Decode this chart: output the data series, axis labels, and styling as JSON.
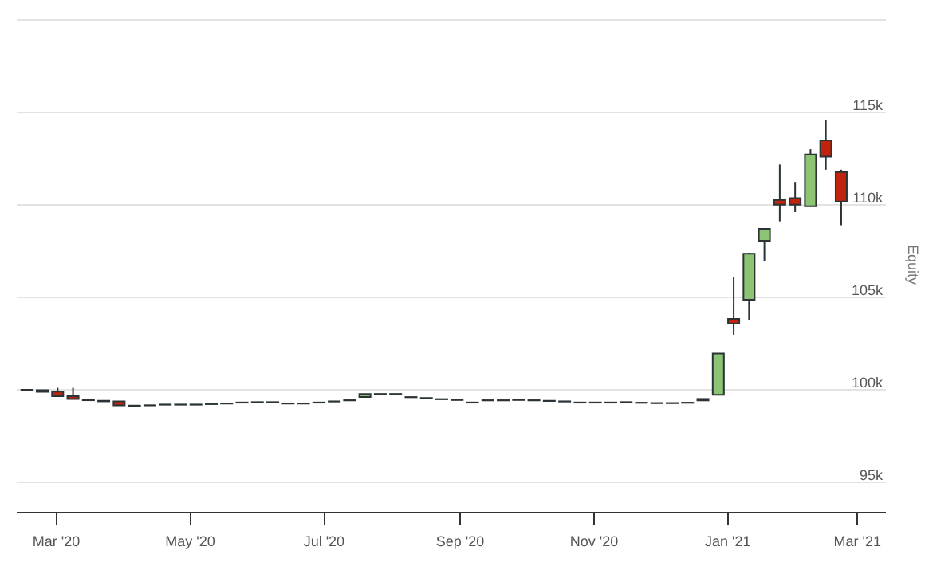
{
  "chart_data": {
    "type": "candlestick",
    "ylabel": "Equity",
    "grid": "y",
    "ylim": [
      93400,
      120200
    ],
    "yticks": [
      {
        "value": 95000,
        "label": "95k"
      },
      {
        "value": 100000,
        "label": "100k"
      },
      {
        "value": 105000,
        "label": "105k"
      },
      {
        "value": 110000,
        "label": "110k"
      },
      {
        "value": 115000,
        "label": "115k"
      },
      {
        "value": 120000,
        "label": null
      }
    ],
    "xlim": [
      "2020-02-12",
      "2021-03-14"
    ],
    "xticks": [
      {
        "value": "2020-03-01",
        "label": "Mar '20"
      },
      {
        "value": "2020-05-01",
        "label": "May '20"
      },
      {
        "value": "2020-07-01",
        "label": "Jul '20"
      },
      {
        "value": "2020-09-01",
        "label": "Sep '20"
      },
      {
        "value": "2020-11-01",
        "label": "Nov '20"
      },
      {
        "value": "2021-01-01",
        "label": "Jan '21"
      },
      {
        "value": "2021-03-01",
        "label": "Mar '21"
      }
    ],
    "x": [
      "2020-02-17",
      "2020-02-24",
      "2020-03-02",
      "2020-03-09",
      "2020-03-16",
      "2020-03-23",
      "2020-03-30",
      "2020-04-06",
      "2020-04-13",
      "2020-04-20",
      "2020-04-27",
      "2020-05-04",
      "2020-05-11",
      "2020-05-18",
      "2020-05-25",
      "2020-06-01",
      "2020-06-08",
      "2020-06-15",
      "2020-06-22",
      "2020-06-29",
      "2020-07-06",
      "2020-07-13",
      "2020-07-20",
      "2020-07-27",
      "2020-08-03",
      "2020-08-10",
      "2020-08-17",
      "2020-08-24",
      "2020-08-31",
      "2020-09-07",
      "2020-09-14",
      "2020-09-21",
      "2020-09-28",
      "2020-10-05",
      "2020-10-12",
      "2020-10-19",
      "2020-10-26",
      "2020-11-02",
      "2020-11-09",
      "2020-11-16",
      "2020-11-23",
      "2020-11-30",
      "2020-12-07",
      "2020-12-14",
      "2020-12-21",
      "2020-12-28",
      "2021-01-04",
      "2021-01-11",
      "2021-01-18",
      "2021-01-25",
      "2021-02-01",
      "2021-02-08",
      "2021-02-15",
      "2021-02-22"
    ],
    "ohlc": [
      [
        99990,
        100000,
        99970,
        99970
      ],
      [
        99970,
        99990,
        99880,
        99880
      ],
      [
        99900,
        100100,
        99650,
        99650
      ],
      [
        99650,
        100100,
        99500,
        99500
      ],
      [
        99430,
        99450,
        99430,
        99450
      ],
      [
        99400,
        99400,
        99370,
        99370
      ],
      [
        99370,
        99370,
        99150,
        99150
      ],
      [
        99130,
        99140,
        99130,
        99140
      ],
      [
        99150,
        99160,
        99150,
        99160
      ],
      [
        99190,
        99200,
        99190,
        99200
      ],
      [
        99190,
        99200,
        99190,
        99200
      ],
      [
        99190,
        99200,
        99190,
        99200
      ],
      [
        99220,
        99230,
        99220,
        99230
      ],
      [
        99250,
        99260,
        99250,
        99260
      ],
      [
        99300,
        99310,
        99300,
        99310
      ],
      [
        99320,
        99330,
        99320,
        99330
      ],
      [
        99320,
        99330,
        99320,
        99330
      ],
      [
        99250,
        99260,
        99250,
        99260
      ],
      [
        99250,
        99260,
        99250,
        99260
      ],
      [
        99300,
        99310,
        99300,
        99310
      ],
      [
        99360,
        99370,
        99360,
        99370
      ],
      [
        99420,
        99430,
        99420,
        99430
      ],
      [
        99600,
        99770,
        99600,
        99770
      ],
      [
        99760,
        99770,
        99760,
        99770
      ],
      [
        99760,
        99770,
        99760,
        99770
      ],
      [
        99590,
        99600,
        99590,
        99600
      ],
      [
        99540,
        99550,
        99540,
        99550
      ],
      [
        99480,
        99490,
        99480,
        99490
      ],
      [
        99440,
        99450,
        99440,
        99450
      ],
      [
        99300,
        99310,
        99300,
        99310
      ],
      [
        99420,
        99430,
        99420,
        99430
      ],
      [
        99420,
        99430,
        99420,
        99430
      ],
      [
        99440,
        99450,
        99440,
        99450
      ],
      [
        99420,
        99430,
        99420,
        99430
      ],
      [
        99390,
        99400,
        99390,
        99400
      ],
      [
        99360,
        99370,
        99360,
        99370
      ],
      [
        99300,
        99310,
        99300,
        99310
      ],
      [
        99300,
        99310,
        99300,
        99310
      ],
      [
        99300,
        99310,
        99300,
        99310
      ],
      [
        99320,
        99330,
        99320,
        99330
      ],
      [
        99290,
        99300,
        99290,
        99300
      ],
      [
        99270,
        99280,
        99270,
        99280
      ],
      [
        99270,
        99280,
        99270,
        99280
      ],
      [
        99290,
        99300,
        99290,
        99300
      ],
      [
        99420,
        99500,
        99420,
        99500
      ],
      [
        99720,
        101950,
        99720,
        101950
      ],
      [
        103830,
        106100,
        102970,
        103570
      ],
      [
        104860,
        107400,
        103770,
        107350
      ],
      [
        108050,
        108700,
        106970,
        108700
      ],
      [
        110260,
        112170,
        109100,
        110000
      ],
      [
        110350,
        111230,
        109600,
        110000
      ],
      [
        109910,
        113000,
        109910,
        112710
      ],
      [
        113480,
        114570,
        111890,
        112600
      ],
      [
        111770,
        111890,
        108890,
        110170
      ]
    ],
    "colors": [
      "#c0240c",
      "#c0240c",
      "#c0240c",
      "#c0240c",
      "#8cc474",
      "#c0240c",
      "#c0240c",
      "#8cc474",
      "#8cc474",
      "#8cc474",
      "#8cc474",
      "#8cc474",
      "#8cc474",
      "#8cc474",
      "#8cc474",
      "#8cc474",
      "#8cc474",
      "#8cc474",
      "#8cc474",
      "#8cc474",
      "#8cc474",
      "#8cc474",
      "#8cc474",
      "#8cc474",
      "#8cc474",
      "#8cc474",
      "#8cc474",
      "#8cc474",
      "#8cc474",
      "#8cc474",
      "#8cc474",
      "#8cc474",
      "#8cc474",
      "#8cc474",
      "#8cc474",
      "#8cc474",
      "#8cc474",
      "#8cc474",
      "#8cc474",
      "#8cc474",
      "#8cc474",
      "#8cc474",
      "#8cc474",
      "#8cc474",
      "#8cc474",
      "#8cc474",
      "#c0240c",
      "#8cc474",
      "#8cc474",
      "#c0240c",
      "#c0240c",
      "#8cc474",
      "#c0240c",
      "#c0240c"
    ]
  }
}
